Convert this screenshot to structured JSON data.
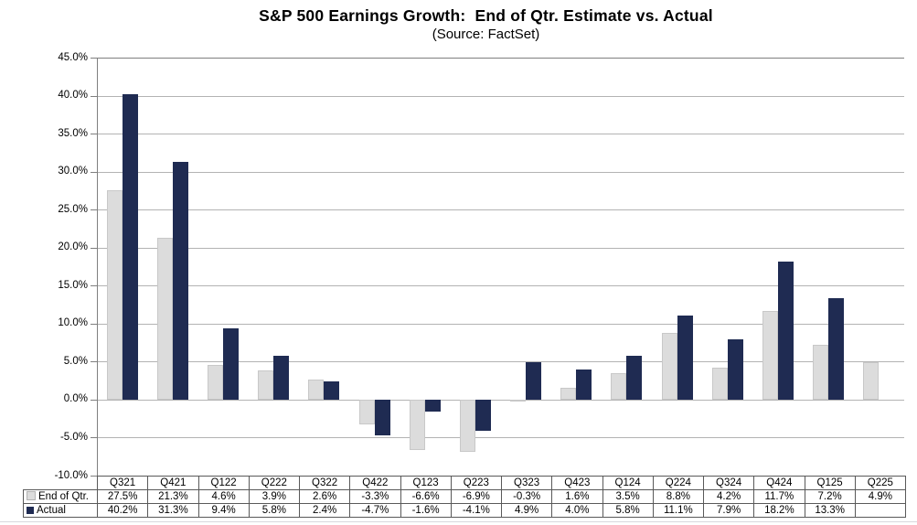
{
  "chart_data": {
    "type": "bar",
    "title": "S&P 500 Earnings Growth:  End of Qtr. Estimate vs. Actual",
    "subtitle": "(Source: FactSet)",
    "categories": [
      "Q321",
      "Q421",
      "Q122",
      "Q222",
      "Q322",
      "Q422",
      "Q123",
      "Q223",
      "Q323",
      "Q423",
      "Q124",
      "Q224",
      "Q324",
      "Q424",
      "Q125",
      "Q225"
    ],
    "series": [
      {
        "name": "End of Qtr.",
        "color": "#dcdcdc",
        "values": [
          27.5,
          21.3,
          4.6,
          3.9,
          2.6,
          -3.3,
          -6.6,
          -6.9,
          -0.3,
          1.6,
          3.5,
          8.8,
          4.2,
          11.7,
          7.2,
          4.9
        ],
        "labels": [
          "27.5%",
          "21.3%",
          "4.6%",
          "3.9%",
          "2.6%",
          "-3.3%",
          "-6.6%",
          "-6.9%",
          "-0.3%",
          "1.6%",
          "3.5%",
          "8.8%",
          "4.2%",
          "11.7%",
          "7.2%",
          "4.9%"
        ]
      },
      {
        "name": "Actual",
        "color": "#1f2b52",
        "values": [
          40.2,
          31.3,
          9.4,
          5.8,
          2.4,
          -4.7,
          -1.6,
          -4.1,
          4.9,
          4.0,
          5.8,
          11.1,
          7.9,
          18.2,
          13.3,
          null
        ],
        "labels": [
          "40.2%",
          "31.3%",
          "9.4%",
          "5.8%",
          "2.4%",
          "-4.7%",
          "-1.6%",
          "-4.1%",
          "4.9%",
          "4.0%",
          "5.8%",
          "11.1%",
          "7.9%",
          "18.2%",
          "13.3%",
          ""
        ]
      }
    ],
    "ylim": [
      -10,
      45
    ],
    "ytick_step": 5,
    "ytick_labels": [
      "45.0%",
      "40.0%",
      "35.0%",
      "30.0%",
      "25.0%",
      "20.0%",
      "15.0%",
      "10.0%",
      "5.0%",
      "0.0%",
      "-5.0%",
      "-10.0%"
    ],
    "grid": "horizontal",
    "legend_position": "table-rows"
  },
  "colors": {
    "estimate_bar": "#dcdcdc",
    "estimate_bar_edge": "#c8c8c8",
    "actual_bar": "#1f2b52",
    "actual_bar_edge": "#19224200",
    "gridline": "#b3b3b3",
    "axis": "#7f7f7f",
    "table_border": "#595959",
    "text": "#000000"
  }
}
